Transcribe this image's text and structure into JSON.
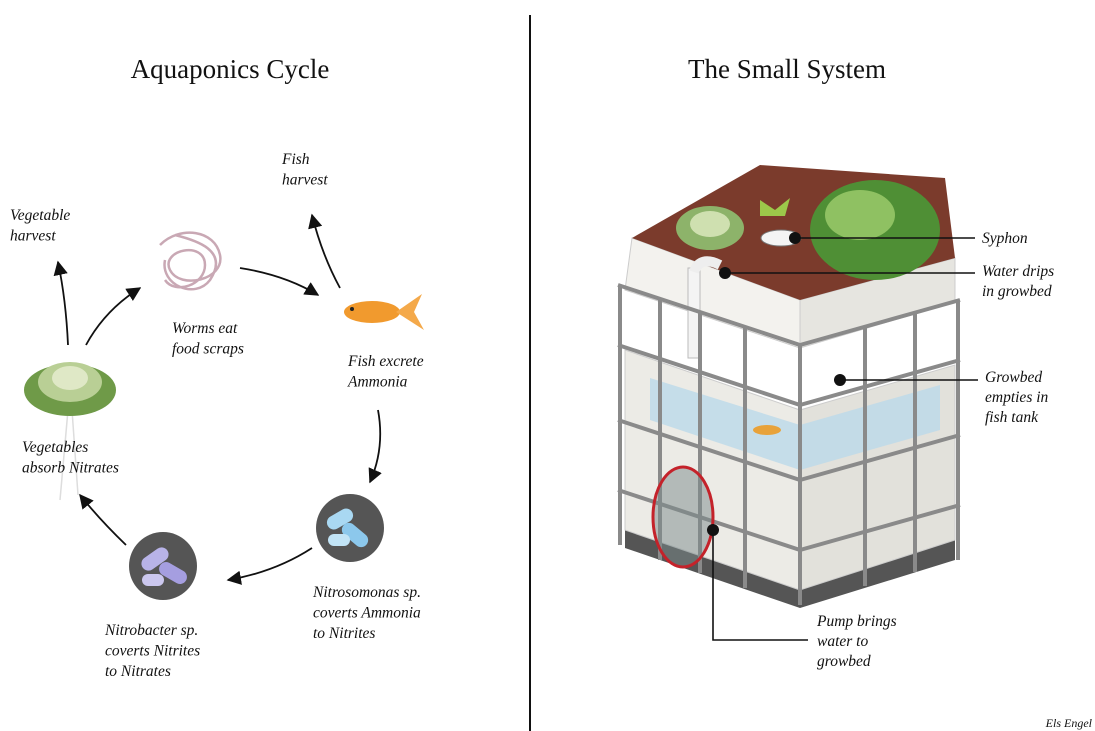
{
  "left": {
    "title": "Aquaponics Cycle",
    "labels": [
      {
        "lines": [
          "Vegetable",
          "harvest"
        ]
      },
      {
        "lines": [
          "Fish",
          "harvest"
        ]
      },
      {
        "lines": [
          "Worms eat",
          "food scraps"
        ]
      },
      {
        "lines": [
          "Fish excrete",
          "Ammonia"
        ]
      },
      {
        "lines": [
          "Vegetables",
          "absorb Nitrates"
        ]
      },
      {
        "lines": [
          "Nitrosomonas sp.",
          "coverts Ammonia",
          "to Nitrites"
        ]
      },
      {
        "lines": [
          "Nitrobacter sp.",
          "coverts Nitrites",
          "to Nitrates"
        ]
      }
    ]
  },
  "right": {
    "title": "The Small System",
    "callouts": [
      {
        "lines": [
          "Syphon"
        ]
      },
      {
        "lines": [
          "Water drips",
          "in growbed"
        ]
      },
      {
        "lines": [
          "Growbed",
          "empties in",
          "fish tank"
        ]
      },
      {
        "lines": [
          "Pump brings",
          "water to",
          "growbed"
        ]
      }
    ]
  },
  "credit": "Els Engel"
}
